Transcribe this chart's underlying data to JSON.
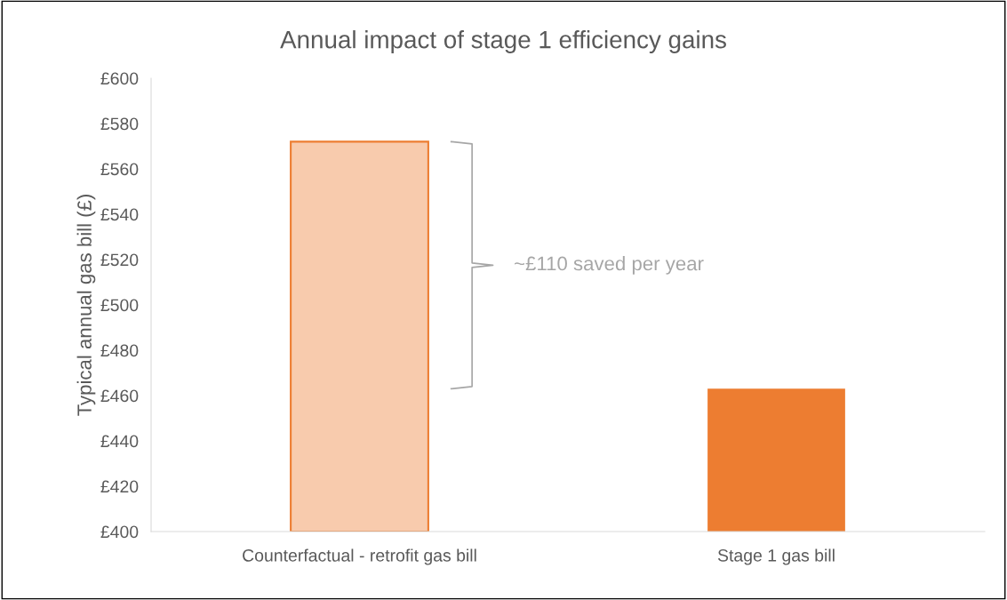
{
  "chart_data": {
    "type": "bar",
    "title": "Annual impact of stage 1 efficiency gains",
    "ylabel": "Typical annual gas bill (£)",
    "categories": [
      "Counterfactual - retrofit gas bill",
      "Stage 1 gas bill"
    ],
    "values": [
      572,
      463
    ],
    "colors": [
      "#f8cbad",
      "#ed7d31"
    ],
    "ylim": [
      400,
      600
    ],
    "yticks": [
      {
        "value": 400,
        "label": "£400"
      },
      {
        "value": 420,
        "label": "£420"
      },
      {
        "value": 440,
        "label": "£440"
      },
      {
        "value": 460,
        "label": "£460"
      },
      {
        "value": 480,
        "label": "£480"
      },
      {
        "value": 500,
        "label": "£500"
      },
      {
        "value": 520,
        "label": "£520"
      },
      {
        "value": 540,
        "label": "£540"
      },
      {
        "value": 560,
        "label": "£560"
      },
      {
        "value": 580,
        "label": "£580"
      },
      {
        "value": 600,
        "label": "£600"
      }
    ],
    "annotations": [
      "~£110 saved per year"
    ],
    "grid": false
  }
}
